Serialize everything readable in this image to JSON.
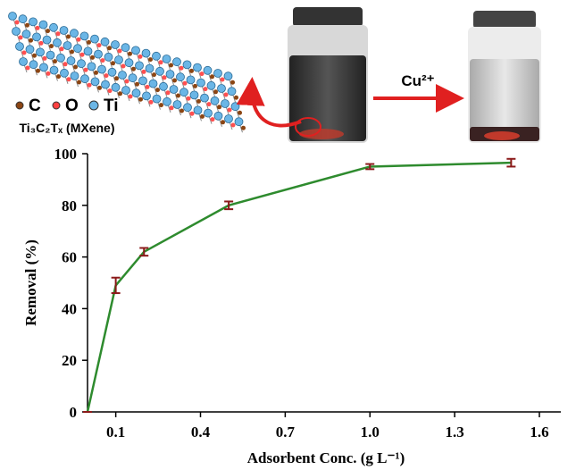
{
  "illustration": {
    "atom_labels": [
      "C",
      "O",
      "Ti"
    ],
    "material_label": "Ti₃C₂Tₓ (MXene)",
    "ion_label": "Cu²⁺"
  },
  "chart_data": {
    "type": "line",
    "x": [
      0,
      0.1,
      0.2,
      0.5,
      1.0,
      1.5
    ],
    "series": [
      {
        "color": "#2e8b2e",
        "error_color": "#8b1a1a",
        "values": [
          0,
          49,
          62,
          80,
          95,
          96.5
        ],
        "errors": [
          0,
          3,
          1.5,
          1.5,
          1,
          1.5
        ]
      }
    ],
    "xlim": [
      0,
      1.6
    ],
    "xticks": [
      0.1,
      0.4,
      0.7,
      {
        "value": 1.0,
        "label": "1.0"
      },
      1.3,
      1.6
    ],
    "ylim": [
      0,
      100
    ],
    "yticks": [
      0,
      20,
      40,
      60,
      80,
      100
    ],
    "xlabel": "Adsorbent Conc. (g L⁻¹)",
    "ylabel": "Removal (%)"
  }
}
